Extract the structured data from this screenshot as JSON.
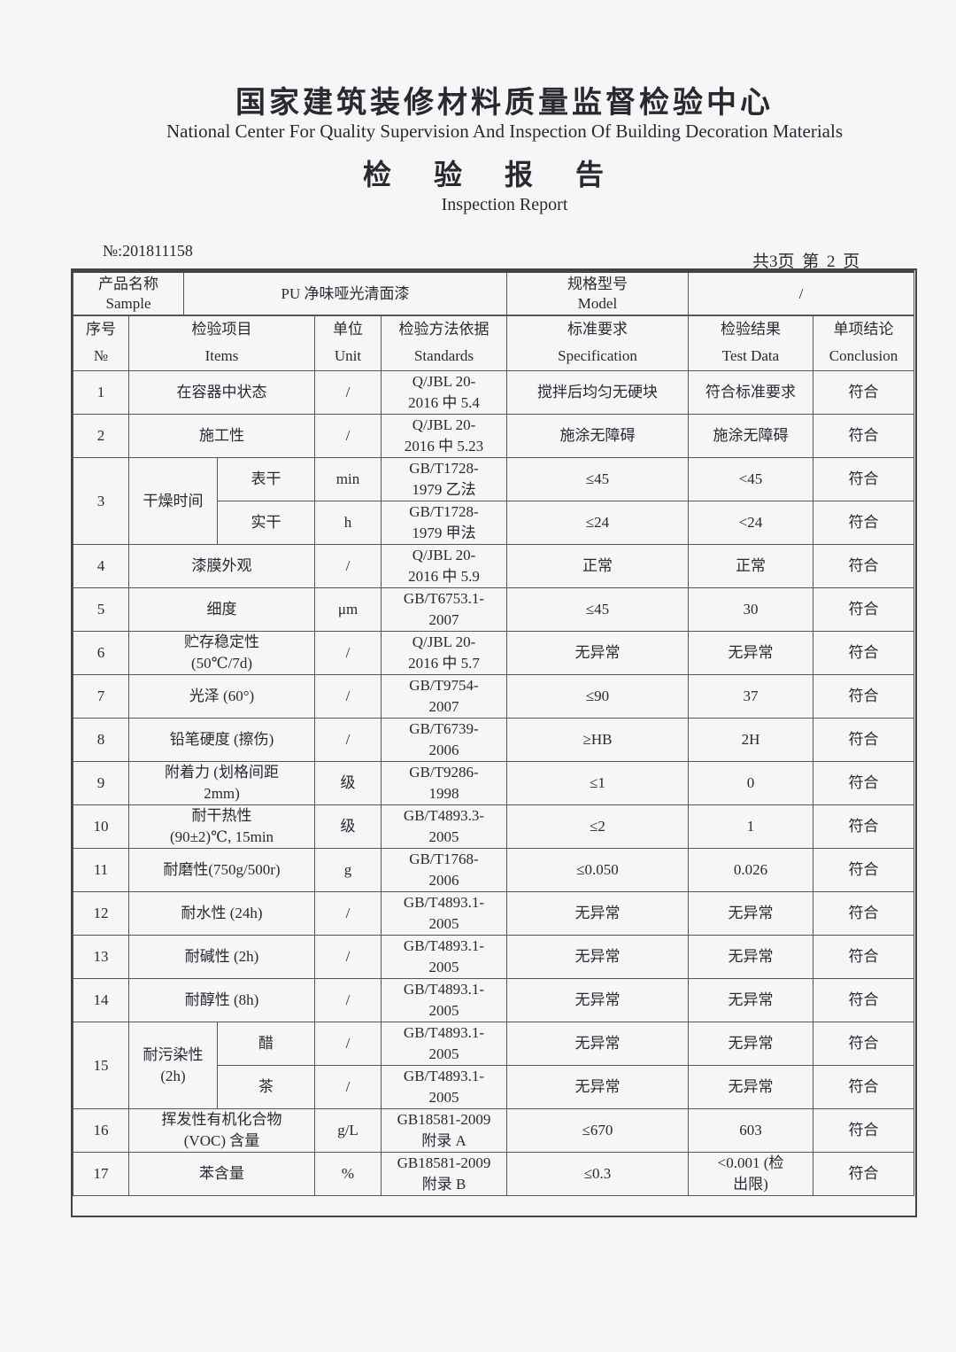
{
  "header": {
    "org_cn": "国家建筑装修材料质量监督检验中心",
    "org_en": "National Center For Quality Supervision And Inspection Of Building Decoration Materials",
    "report_cn": "检验报告",
    "report_en": "Inspection Report",
    "report_no": "№:201811158",
    "pages": "共3页  第 2 页"
  },
  "sample": {
    "label_cn": "产品名称",
    "label_en": "Sample",
    "value": "PU 净味哑光清面漆",
    "model_label_cn": "规格型号",
    "model_label_en": "Model",
    "model_value": "/"
  },
  "columns": [
    {
      "cn": "序号",
      "en": "№"
    },
    {
      "cn": "检验项目",
      "en": "Items"
    },
    {
      "cn": "单位",
      "en": "Unit"
    },
    {
      "cn": "检验方法依据",
      "en": "Standards"
    },
    {
      "cn": "标准要求",
      "en": "Specification"
    },
    {
      "cn": "检验结果",
      "en": "Test Data"
    },
    {
      "cn": "单项结论",
      "en": "Conclusion"
    }
  ],
  "rows": [
    {
      "no": "1",
      "item": "在容器中状态",
      "unit": "/",
      "std": "Q/JBL 20-\n2016 中 5.4",
      "spec": "搅拌后均匀无硬块",
      "result": "符合标准要求",
      "conclusion": "符合"
    },
    {
      "no": "2",
      "item": "施工性",
      "unit": "/",
      "std": "Q/JBL 20-\n2016 中 5.23",
      "spec": "施涂无障碍",
      "result": "施涂无障碍",
      "conclusion": "符合"
    },
    {
      "no": "3",
      "item": "干燥时间",
      "sub": [
        {
          "item": "表干",
          "unit": "min",
          "std": "GB/T1728-\n1979 乙法",
          "spec": "≤45",
          "result": "<45",
          "conclusion": "符合"
        },
        {
          "item": "实干",
          "unit": "h",
          "std": "GB/T1728-\n1979 甲法",
          "spec": "≤24",
          "result": "<24",
          "conclusion": "符合"
        }
      ]
    },
    {
      "no": "4",
      "item": "漆膜外观",
      "unit": "/",
      "std": "Q/JBL 20-\n2016 中 5.9",
      "spec": "正常",
      "result": "正常",
      "conclusion": "符合"
    },
    {
      "no": "5",
      "item": "细度",
      "unit": "μm",
      "std": "GB/T6753.1-\n2007",
      "spec": "≤45",
      "result": "30",
      "conclusion": "符合"
    },
    {
      "no": "6",
      "item": "贮存稳定性\n(50℃/7d)",
      "unit": "/",
      "std": "Q/JBL 20-\n2016 中 5.7",
      "spec": "无异常",
      "result": "无异常",
      "conclusion": "符合"
    },
    {
      "no": "7",
      "item": "光泽 (60°)",
      "unit": "/",
      "std": "GB/T9754-\n2007",
      "spec": "≤90",
      "result": "37",
      "conclusion": "符合"
    },
    {
      "no": "8",
      "item": "铅笔硬度 (擦伤)",
      "unit": "/",
      "std": "GB/T6739-\n2006",
      "spec": "≥HB",
      "result": "2H",
      "conclusion": "符合"
    },
    {
      "no": "9",
      "item": "附着力 (划格间距\n2mm)",
      "unit": "级",
      "std": "GB/T9286-\n1998",
      "spec": "≤1",
      "result": "0",
      "conclusion": "符合"
    },
    {
      "no": "10",
      "item": "耐干热性\n(90±2)℃, 15min",
      "unit": "级",
      "std": "GB/T4893.3-\n2005",
      "spec": "≤2",
      "result": "1",
      "conclusion": "符合"
    },
    {
      "no": "11",
      "item": "耐磨性(750g/500r)",
      "unit": "g",
      "std": "GB/T1768-\n2006",
      "spec": "≤0.050",
      "result": "0.026",
      "conclusion": "符合"
    },
    {
      "no": "12",
      "item": "耐水性 (24h)",
      "unit": "/",
      "std": "GB/T4893.1-\n2005",
      "spec": "无异常",
      "result": "无异常",
      "conclusion": "符合"
    },
    {
      "no": "13",
      "item": "耐碱性 (2h)",
      "unit": "/",
      "std": "GB/T4893.1-\n2005",
      "spec": "无异常",
      "result": "无异常",
      "conclusion": "符合"
    },
    {
      "no": "14",
      "item": "耐醇性 (8h)",
      "unit": "/",
      "std": "GB/T4893.1-\n2005",
      "spec": "无异常",
      "result": "无异常",
      "conclusion": "符合"
    },
    {
      "no": "15",
      "item": "耐污染性\n(2h)",
      "sub": [
        {
          "item": "醋",
          "unit": "/",
          "std": "GB/T4893.1-\n2005",
          "spec": "无异常",
          "result": "无异常",
          "conclusion": "符合"
        },
        {
          "item": "茶",
          "unit": "/",
          "std": "GB/T4893.1-\n2005",
          "spec": "无异常",
          "result": "无异常",
          "conclusion": "符合"
        }
      ]
    },
    {
      "no": "16",
      "item": "挥发性有机化合物\n(VOC) 含量",
      "unit": "g/L",
      "std": "GB18581-2009\n附录 A",
      "spec": "≤670",
      "result": "603",
      "conclusion": "符合"
    },
    {
      "no": "17",
      "item": "苯含量",
      "unit": "%",
      "std": "GB18581-2009\n附录 B",
      "spec": "≤0.3",
      "result": "<0.001 (检\n出限)",
      "conclusion": "符合"
    }
  ]
}
